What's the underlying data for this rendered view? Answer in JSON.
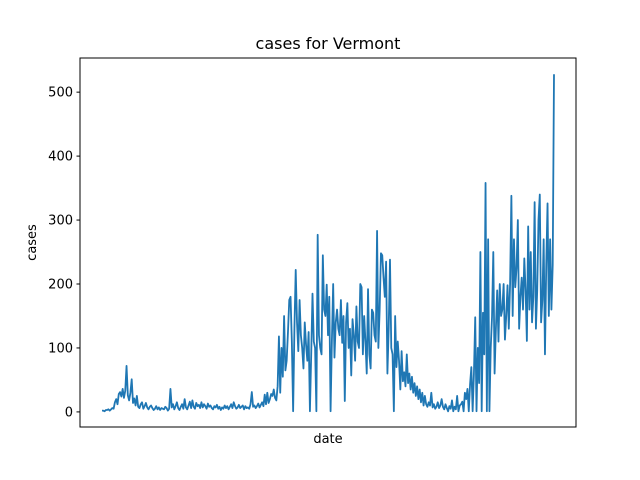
{
  "chart_data": {
    "type": "line",
    "title": "cases for Vermont",
    "xlabel": "date",
    "ylabel": "cases",
    "ylim": [
      -23.6,
      553.4
    ],
    "yticks": [
      0,
      100,
      200,
      300,
      400,
      500
    ],
    "ytick_labels": [
      "0",
      "100",
      "200",
      "300",
      "400",
      "500"
    ],
    "xticks_shown": false,
    "grid": false,
    "line_color": "#1f77b4",
    "series": [
      {
        "values": [
          2,
          2,
          1,
          3,
          3,
          4,
          2,
          4,
          6,
          5,
          15,
          20,
          12,
          28,
          31,
          24,
          36,
          22,
          33,
          72,
          26,
          18,
          30,
          51,
          14,
          21,
          10,
          25,
          8,
          6,
          12,
          15,
          5,
          9,
          14,
          7,
          4,
          8,
          10,
          6,
          3,
          5,
          9,
          4,
          7,
          3,
          6,
          5,
          4,
          8,
          6,
          2,
          5,
          36,
          7,
          12,
          4,
          9,
          15,
          6,
          3,
          8,
          12,
          5,
          20,
          7,
          4,
          10,
          16,
          6,
          18,
          8,
          5,
          14,
          9,
          11,
          6,
          15,
          7,
          12,
          9,
          5,
          13,
          8,
          10,
          6,
          4,
          9,
          7,
          11,
          5,
          8,
          3,
          7,
          5,
          10,
          6,
          9,
          4,
          8,
          12,
          6,
          15,
          9,
          5,
          7,
          11,
          6,
          8,
          10,
          4,
          9,
          6,
          7,
          5,
          12,
          31,
          8,
          10,
          6,
          9,
          13,
          7,
          11,
          15,
          9,
          27,
          12,
          30,
          14,
          20,
          28,
          25,
          35,
          22,
          18,
          40,
          118,
          30,
          100,
          55,
          150,
          65,
          80,
          125,
          175,
          180,
          110,
          1,
          130,
          222,
          140,
          95,
          175,
          120,
          100,
          68,
          140,
          105,
          80,
          125,
          1,
          90,
          185,
          110,
          100,
          1,
          277,
          120,
          100,
          90,
          245,
          160,
          150,
          199,
          120,
          180,
          1,
          110,
          200,
          85,
          140,
          160,
          130,
          120,
          175,
          108,
          150,
          17,
          140,
          170,
          100,
          130,
          57,
          145,
          120,
          80,
          165,
          110,
          100,
          200,
          195,
          90,
          150,
          110,
          60,
          192,
          90,
          68,
          160,
          155,
          120,
          110,
          283,
          100,
          160,
          248,
          245,
          210,
          180,
          235,
          60,
          130,
          238,
          100,
          90,
          1,
          150,
          70,
          110,
          80,
          35,
          95,
          48,
          62,
          40,
          90,
          45,
          60,
          35,
          55,
          30,
          45,
          25,
          40,
          20,
          35,
          15,
          30,
          10,
          25,
          12,
          8,
          15,
          10,
          30,
          7,
          12,
          5,
          8,
          15,
          6,
          10,
          20,
          8,
          4,
          12,
          6,
          1,
          9,
          5,
          18,
          1,
          8,
          4,
          25,
          1,
          10,
          12,
          16,
          1,
          30,
          20,
          36,
          1,
          43,
          70,
          1,
          60,
          148,
          1,
          100,
          45,
          250,
          1,
          155,
          90,
          358,
          1,
          270,
          1,
          100,
          148,
          250,
          60,
          130,
          190,
          110,
          200,
          150,
          160,
          200,
          113,
          150,
          198,
          130,
          200,
          338,
          150,
          270,
          195,
          225,
          300,
          130,
          180,
          210,
          160,
          240,
          190,
          111,
          290,
          160,
          250,
          140,
          180,
          328,
          130,
          190,
          300,
          340,
          140,
          175,
          270,
          90,
          230,
          326,
          150,
          270,
          160,
          230,
          528
        ]
      }
    ]
  }
}
